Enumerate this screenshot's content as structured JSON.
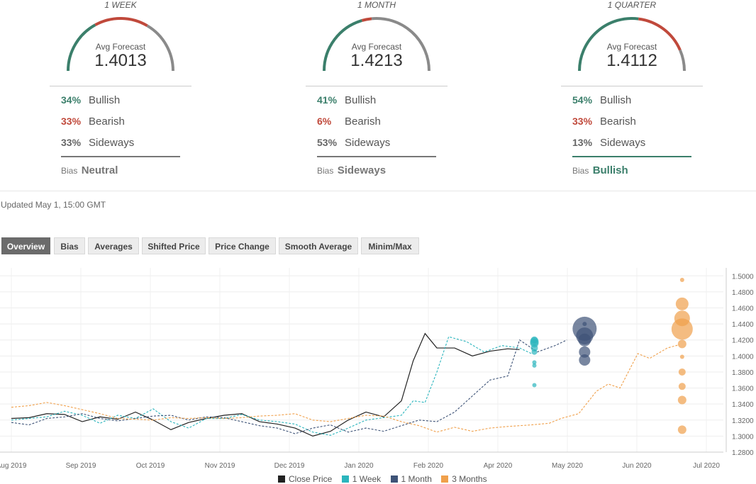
{
  "forecast_panels": [
    {
      "title": "1 WEEK",
      "avg_label": "Avg Forecast",
      "avg_value": "1.4013",
      "bullish_pct": "34%",
      "bullish_label": "Bullish",
      "bearish_pct": "33%",
      "bearish_label": "Bearish",
      "sideways_pct": "33%",
      "sideways_label": "Sideways",
      "bias_label": "Bias",
      "bias_value": "Neutral",
      "gauge": {
        "bullish": 34,
        "bearish": 33,
        "sideways": 33
      }
    },
    {
      "title": "1 MONTH",
      "avg_label": "Avg Forecast",
      "avg_value": "1.4213",
      "bullish_pct": "41%",
      "bullish_label": "Bullish",
      "bearish_pct": "6%",
      "bearish_label": "Bearish",
      "sideways_pct": "53%",
      "sideways_label": "Sideways",
      "bias_label": "Bias",
      "bias_value": "Sideways",
      "gauge": {
        "bullish": 41,
        "bearish": 6,
        "sideways": 53
      }
    },
    {
      "title": "1 QUARTER",
      "avg_label": "Avg Forecast",
      "avg_value": "1.4112",
      "bullish_pct": "54%",
      "bullish_label": "Bullish",
      "bearish_pct": "33%",
      "bearish_label": "Bearish",
      "sideways_pct": "13%",
      "sideways_label": "Sideways",
      "bias_label": "Bias",
      "bias_value": "Bullish",
      "gauge": {
        "bullish": 54,
        "bearish": 33,
        "sideways": 13
      }
    }
  ],
  "updated": "Updated May 1, 15:00 GMT",
  "tabs": [
    {
      "label": "Overview",
      "active": true
    },
    {
      "label": "Bias",
      "active": false
    },
    {
      "label": "Averages",
      "active": false
    },
    {
      "label": "Shifted Price",
      "active": false
    },
    {
      "label": "Price Change",
      "active": false
    },
    {
      "label": "Smooth Average",
      "active": false
    },
    {
      "label": "Minim/Max",
      "active": false
    }
  ],
  "colors": {
    "bullish": "#3b7f6b",
    "bearish": "#c0493b",
    "sideways": "#8a8a8a",
    "close": "#222222",
    "week": "#2bb5bd",
    "month": "#3e5377",
    "quarter": "#f0a04b"
  },
  "chart_data": {
    "type": "line",
    "x_tick_labels": [
      "Aug 2019",
      "Sep 2019",
      "Oct 2019",
      "Nov 2019",
      "Dec 2019",
      "Jan 2020",
      "Feb 2020",
      "Apr 2020",
      "May 2020",
      "Jun 2020",
      "Jul 2020"
    ],
    "y_ticks": [
      "1.2800",
      "1.3000",
      "1.3200",
      "1.3400",
      "1.3600",
      "1.3800",
      "1.4000",
      "1.4200",
      "1.4400",
      "1.4600",
      "1.4800",
      "1.5000"
    ],
    "ylim": [
      1.28,
      1.51
    ],
    "grid": true,
    "legend_position": "bottom",
    "series": [
      {
        "name": "Close Price",
        "points": [
          [
            0,
            1.322
          ],
          [
            3,
            1.323
          ],
          [
            6,
            1.328
          ],
          [
            9,
            1.327
          ],
          [
            12,
            1.318
          ],
          [
            15,
            1.324
          ],
          [
            18,
            1.321
          ],
          [
            21,
            1.33
          ],
          [
            24,
            1.32
          ],
          [
            27,
            1.308
          ],
          [
            30,
            1.317
          ],
          [
            33,
            1.322
          ],
          [
            36,
            1.326
          ],
          [
            39,
            1.328
          ],
          [
            42,
            1.318
          ],
          [
            45,
            1.315
          ],
          [
            48,
            1.31
          ],
          [
            51,
            1.3
          ],
          [
            54,
            1.306
          ],
          [
            57,
            1.32
          ],
          [
            60,
            1.33
          ],
          [
            63,
            1.324
          ],
          [
            66,
            1.344
          ],
          [
            68,
            1.394
          ],
          [
            70,
            1.428
          ],
          [
            72,
            1.41
          ],
          [
            75,
            1.41
          ],
          [
            78,
            1.4
          ],
          [
            81,
            1.406
          ],
          [
            84,
            1.409
          ],
          [
            86,
            1.408
          ]
        ]
      },
      {
        "name": "1 Week",
        "points": [
          [
            0,
            1.32
          ],
          [
            3,
            1.322
          ],
          [
            6,
            1.324
          ],
          [
            9,
            1.331
          ],
          [
            12,
            1.326
          ],
          [
            15,
            1.316
          ],
          [
            18,
            1.326
          ],
          [
            21,
            1.322
          ],
          [
            24,
            1.334
          ],
          [
            27,
            1.318
          ],
          [
            30,
            1.31
          ],
          [
            33,
            1.322
          ],
          [
            36,
            1.322
          ],
          [
            39,
            1.327
          ],
          [
            42,
            1.32
          ],
          [
            45,
            1.318
          ],
          [
            48,
            1.315
          ],
          [
            51,
            1.305
          ],
          [
            54,
            1.301
          ],
          [
            57,
            1.31
          ],
          [
            60,
            1.32
          ],
          [
            63,
            1.323
          ],
          [
            66,
            1.326
          ],
          [
            68,
            1.344
          ],
          [
            70,
            1.342
          ],
          [
            72,
            1.38
          ],
          [
            74,
            1.424
          ],
          [
            77,
            1.418
          ],
          [
            80,
            1.405
          ],
          [
            83,
            1.413
          ],
          [
            86,
            1.41
          ],
          [
            88,
            1.403
          ]
        ]
      },
      {
        "name": "1 Month",
        "points": [
          [
            0,
            1.317
          ],
          [
            3,
            1.314
          ],
          [
            6,
            1.322
          ],
          [
            9,
            1.324
          ],
          [
            12,
            1.328
          ],
          [
            15,
            1.322
          ],
          [
            18,
            1.319
          ],
          [
            21,
            1.322
          ],
          [
            24,
            1.325
          ],
          [
            27,
            1.326
          ],
          [
            30,
            1.32
          ],
          [
            33,
            1.324
          ],
          [
            36,
            1.323
          ],
          [
            39,
            1.318
          ],
          [
            42,
            1.313
          ],
          [
            45,
            1.31
          ],
          [
            48,
            1.303
          ],
          [
            51,
            1.31
          ],
          [
            54,
            1.314
          ],
          [
            57,
            1.305
          ],
          [
            60,
            1.31
          ],
          [
            63,
            1.306
          ],
          [
            66,
            1.313
          ],
          [
            69,
            1.32
          ],
          [
            72,
            1.318
          ],
          [
            75,
            1.33
          ],
          [
            78,
            1.35
          ],
          [
            81,
            1.37
          ],
          [
            84,
            1.375
          ],
          [
            86,
            1.42
          ],
          [
            89,
            1.405
          ],
          [
            92,
            1.413
          ],
          [
            94,
            1.42
          ]
        ]
      },
      {
        "name": "3 Months",
        "points": [
          [
            0,
            1.336
          ],
          [
            3,
            1.338
          ],
          [
            6,
            1.342
          ],
          [
            9,
            1.338
          ],
          [
            12,
            1.333
          ],
          [
            15,
            1.328
          ],
          [
            18,
            1.322
          ],
          [
            21,
            1.321
          ],
          [
            24,
            1.32
          ],
          [
            27,
            1.323
          ],
          [
            30,
            1.322
          ],
          [
            33,
            1.323
          ],
          [
            36,
            1.322
          ],
          [
            39,
            1.323
          ],
          [
            42,
            1.325
          ],
          [
            45,
            1.326
          ],
          [
            48,
            1.328
          ],
          [
            51,
            1.32
          ],
          [
            54,
            1.318
          ],
          [
            57,
            1.322
          ],
          [
            60,
            1.326
          ],
          [
            63,
            1.325
          ],
          [
            66,
            1.318
          ],
          [
            69,
            1.313
          ],
          [
            72,
            1.305
          ],
          [
            75,
            1.311
          ],
          [
            78,
            1.306
          ],
          [
            81,
            1.31
          ],
          [
            84,
            1.312
          ],
          [
            88,
            1.314
          ],
          [
            91,
            1.316
          ],
          [
            93,
            1.322
          ],
          [
            96,
            1.328
          ],
          [
            99,
            1.356
          ],
          [
            101,
            1.365
          ],
          [
            103,
            1.36
          ],
          [
            106,
            1.403
          ],
          [
            108,
            1.397
          ],
          [
            111,
            1.41
          ],
          [
            113,
            1.414
          ]
        ]
      }
    ],
    "forecast_points": [
      {
        "series": "1 Week",
        "x": 88.5,
        "values": [
          1.3636,
          1.388,
          1.392,
          1.405,
          1.41,
          1.416,
          1.418,
          1.42
        ]
      },
      {
        "series": "1 Month",
        "x": 97,
        "values": [
          1.434,
          1.425,
          1.42,
          1.405,
          1.395,
          1.44
        ]
      },
      {
        "series": "3 Months",
        "x": 113.5,
        "values": [
          1.4336,
          1.447,
          1.465,
          1.495,
          1.415,
          1.399,
          1.38,
          1.362,
          1.345,
          1.308
        ]
      }
    ]
  }
}
